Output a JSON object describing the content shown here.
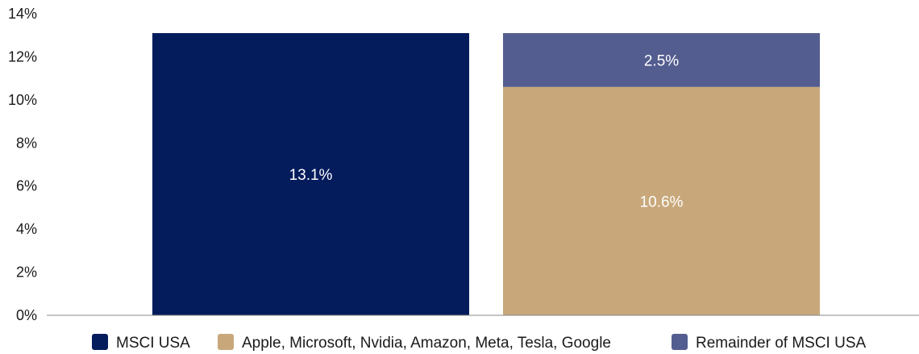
{
  "chart_data": {
    "type": "bar",
    "stacked": true,
    "categories": [
      "",
      ""
    ],
    "y_ticks": [
      "0%",
      "2%",
      "4%",
      "6%",
      "8%",
      "10%",
      "12%",
      "14%"
    ],
    "ylim": [
      0,
      14
    ],
    "grid": false,
    "legend_position": "bottom",
    "series": [
      {
        "name": "MSCI USA",
        "color": "#041c5c",
        "values": [
          13.1,
          null
        ],
        "labels": [
          "13.1%",
          ""
        ]
      },
      {
        "name": "Apple, Microsoft, Nvidia, Amazon, Meta, Tesla, Google",
        "color": "#c8a87a",
        "values": [
          null,
          10.6
        ],
        "labels": [
          "",
          "10.6%"
        ]
      },
      {
        "name": "Remainder of MSCI USA",
        "color": "#545d8f",
        "values": [
          null,
          2.5
        ],
        "labels": [
          "",
          "2.5%"
        ]
      }
    ]
  }
}
